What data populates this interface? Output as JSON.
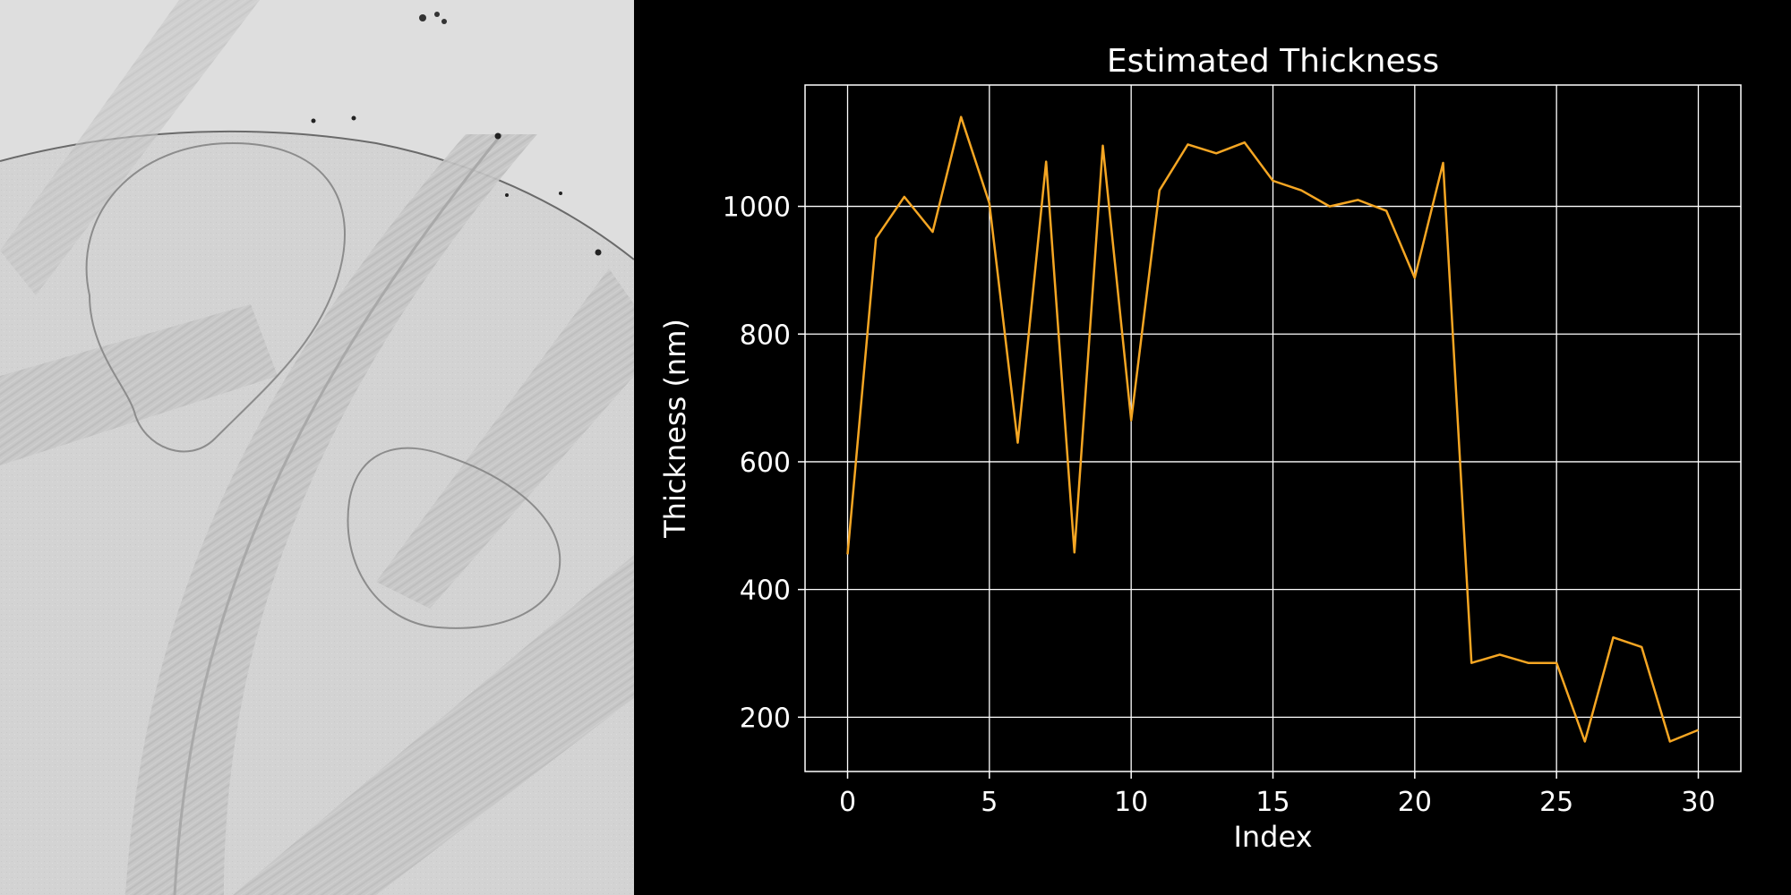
{
  "micrograph": {
    "description_icon": "cryo-em-micrograph-icon"
  },
  "chart_data": {
    "type": "line",
    "title": "Estimated Thickness",
    "xlabel": "Index",
    "ylabel": "Thickness (nm)",
    "xlim": [
      -1.5,
      31.5
    ],
    "ylim": [
      115,
      1190
    ],
    "xticks": [
      0,
      5,
      10,
      15,
      20,
      25,
      30
    ],
    "yticks": [
      200,
      400,
      600,
      800,
      1000
    ],
    "grid": true,
    "line_color": "#f5a623",
    "series": [
      {
        "name": "thickness",
        "x": [
          0,
          1,
          2,
          3,
          4,
          5,
          6,
          7,
          8,
          9,
          10,
          11,
          12,
          13,
          14,
          15,
          16,
          17,
          18,
          19,
          20,
          21,
          22,
          23,
          24,
          25,
          26,
          27,
          28,
          29,
          30
        ],
        "values": [
          455,
          950,
          1015,
          960,
          1140,
          1005,
          630,
          1070,
          458,
          1095,
          665,
          1025,
          1097,
          1083,
          1100,
          1040,
          1025,
          1000,
          1010,
          993,
          888,
          1068,
          285,
          298,
          285,
          285,
          162,
          325,
          310,
          162,
          180
        ]
      }
    ]
  }
}
